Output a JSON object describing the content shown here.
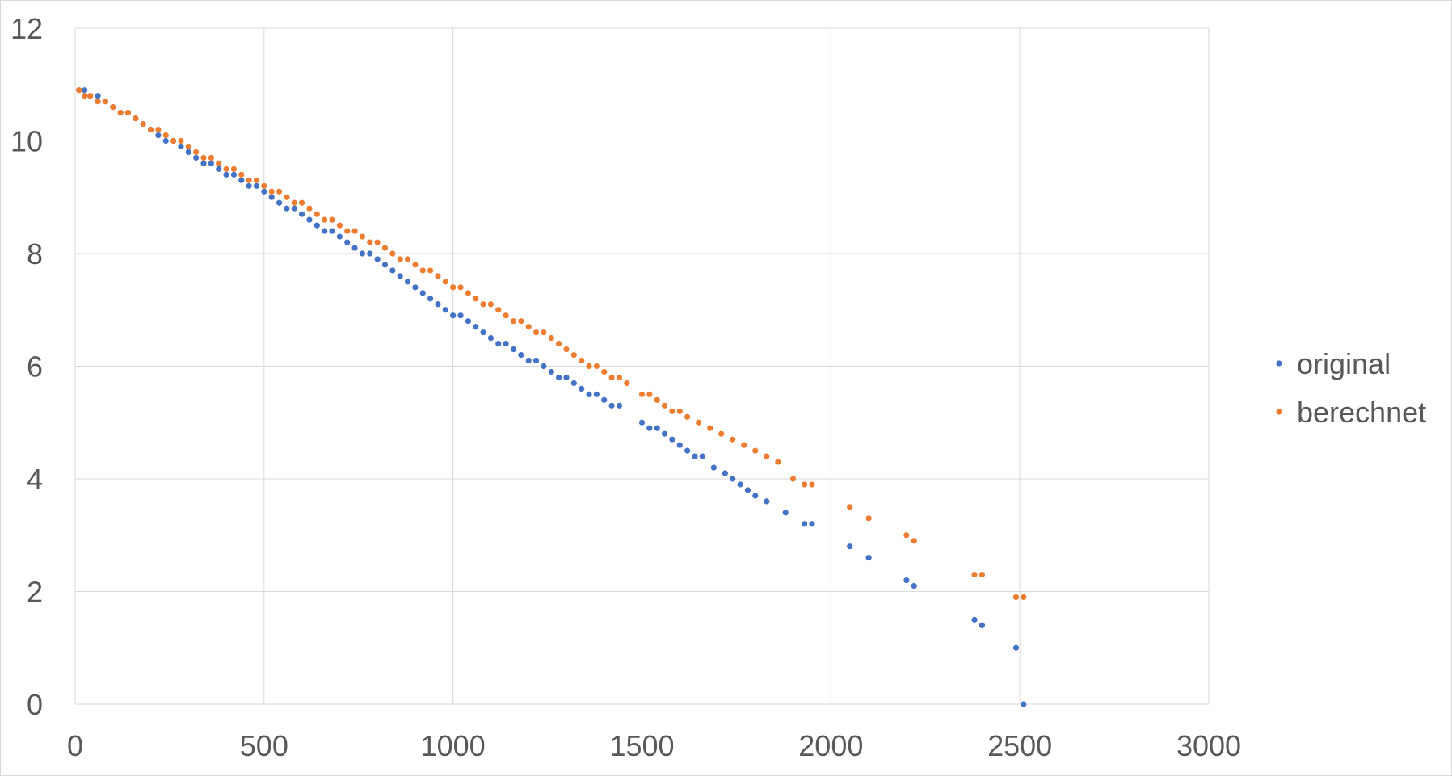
{
  "chart_data": {
    "type": "scatter",
    "title": "",
    "xlabel": "",
    "ylabel": "",
    "xlim": [
      0,
      3000
    ],
    "ylim": [
      0,
      12
    ],
    "x_ticks": [
      0,
      500,
      1000,
      1500,
      2000,
      2500,
      3000
    ],
    "y_ticks": [
      0,
      2,
      4,
      6,
      8,
      10,
      12
    ],
    "grid": true,
    "legend_position": "right",
    "colors": {
      "original": "#4472C4",
      "berechnet": "#ED7D31",
      "grid": "#d9d9d9",
      "text": "#595959"
    },
    "series": [
      {
        "name": "original",
        "points": [
          [
            10,
            10.9
          ],
          [
            25,
            10.9
          ],
          [
            40,
            10.8
          ],
          [
            60,
            10.8
          ],
          [
            80,
            10.7
          ],
          [
            100,
            10.6
          ],
          [
            120,
            10.5
          ],
          [
            140,
            10.5
          ],
          [
            160,
            10.4
          ],
          [
            180,
            10.3
          ],
          [
            200,
            10.2
          ],
          [
            220,
            10.1
          ],
          [
            240,
            10.0
          ],
          [
            260,
            10.0
          ],
          [
            280,
            9.9
          ],
          [
            300,
            9.8
          ],
          [
            320,
            9.7
          ],
          [
            340,
            9.6
          ],
          [
            360,
            9.6
          ],
          [
            380,
            9.5
          ],
          [
            400,
            9.4
          ],
          [
            420,
            9.4
          ],
          [
            440,
            9.3
          ],
          [
            460,
            9.2
          ],
          [
            480,
            9.2
          ],
          [
            500,
            9.1
          ],
          [
            520,
            9.0
          ],
          [
            540,
            8.9
          ],
          [
            560,
            8.8
          ],
          [
            580,
            8.8
          ],
          [
            600,
            8.7
          ],
          [
            620,
            8.6
          ],
          [
            640,
            8.5
          ],
          [
            660,
            8.4
          ],
          [
            680,
            8.4
          ],
          [
            700,
            8.3
          ],
          [
            720,
            8.2
          ],
          [
            740,
            8.1
          ],
          [
            760,
            8.0
          ],
          [
            780,
            8.0
          ],
          [
            800,
            7.9
          ],
          [
            820,
            7.8
          ],
          [
            840,
            7.7
          ],
          [
            860,
            7.6
          ],
          [
            880,
            7.5
          ],
          [
            900,
            7.4
          ],
          [
            920,
            7.3
          ],
          [
            940,
            7.2
          ],
          [
            960,
            7.1
          ],
          [
            980,
            7.0
          ],
          [
            1000,
            6.9
          ],
          [
            1020,
            6.9
          ],
          [
            1040,
            6.8
          ],
          [
            1060,
            6.7
          ],
          [
            1080,
            6.6
          ],
          [
            1100,
            6.5
          ],
          [
            1120,
            6.4
          ],
          [
            1140,
            6.4
          ],
          [
            1160,
            6.3
          ],
          [
            1180,
            6.2
          ],
          [
            1200,
            6.1
          ],
          [
            1220,
            6.1
          ],
          [
            1240,
            6.0
          ],
          [
            1260,
            5.9
          ],
          [
            1280,
            5.8
          ],
          [
            1300,
            5.8
          ],
          [
            1320,
            5.7
          ],
          [
            1340,
            5.6
          ],
          [
            1360,
            5.5
          ],
          [
            1380,
            5.5
          ],
          [
            1400,
            5.4
          ],
          [
            1420,
            5.3
          ],
          [
            1440,
            5.3
          ],
          [
            1500,
            5.0
          ],
          [
            1520,
            4.9
          ],
          [
            1540,
            4.9
          ],
          [
            1560,
            4.8
          ],
          [
            1580,
            4.7
          ],
          [
            1600,
            4.6
          ],
          [
            1620,
            4.5
          ],
          [
            1640,
            4.4
          ],
          [
            1660,
            4.4
          ],
          [
            1690,
            4.2
          ],
          [
            1720,
            4.1
          ],
          [
            1740,
            4.0
          ],
          [
            1760,
            3.9
          ],
          [
            1780,
            3.8
          ],
          [
            1800,
            3.7
          ],
          [
            1830,
            3.6
          ],
          [
            1880,
            3.4
          ],
          [
            1930,
            3.2
          ],
          [
            1950,
            3.2
          ],
          [
            2050,
            2.8
          ],
          [
            2100,
            2.6
          ],
          [
            2200,
            2.2
          ],
          [
            2220,
            2.1
          ],
          [
            2380,
            1.5
          ],
          [
            2400,
            1.4
          ],
          [
            2490,
            1.0
          ],
          [
            2510,
            0.0
          ]
        ]
      },
      {
        "name": "berechnet",
        "points": [
          [
            10,
            10.9
          ],
          [
            25,
            10.8
          ],
          [
            40,
            10.8
          ],
          [
            60,
            10.7
          ],
          [
            80,
            10.7
          ],
          [
            100,
            10.6
          ],
          [
            120,
            10.5
          ],
          [
            140,
            10.5
          ],
          [
            160,
            10.4
          ],
          [
            180,
            10.3
          ],
          [
            200,
            10.2
          ],
          [
            220,
            10.2
          ],
          [
            240,
            10.1
          ],
          [
            260,
            10.0
          ],
          [
            280,
            10.0
          ],
          [
            300,
            9.9
          ],
          [
            320,
            9.8
          ],
          [
            340,
            9.7
          ],
          [
            360,
            9.7
          ],
          [
            380,
            9.6
          ],
          [
            400,
            9.5
          ],
          [
            420,
            9.5
          ],
          [
            440,
            9.4
          ],
          [
            460,
            9.3
          ],
          [
            480,
            9.3
          ],
          [
            500,
            9.2
          ],
          [
            520,
            9.1
          ],
          [
            540,
            9.1
          ],
          [
            560,
            9.0
          ],
          [
            580,
            8.9
          ],
          [
            600,
            8.9
          ],
          [
            620,
            8.8
          ],
          [
            640,
            8.7
          ],
          [
            660,
            8.6
          ],
          [
            680,
            8.6
          ],
          [
            700,
            8.5
          ],
          [
            720,
            8.4
          ],
          [
            740,
            8.4
          ],
          [
            760,
            8.3
          ],
          [
            780,
            8.2
          ],
          [
            800,
            8.2
          ],
          [
            820,
            8.1
          ],
          [
            840,
            8.0
          ],
          [
            860,
            7.9
          ],
          [
            880,
            7.9
          ],
          [
            900,
            7.8
          ],
          [
            920,
            7.7
          ],
          [
            940,
            7.7
          ],
          [
            960,
            7.6
          ],
          [
            980,
            7.5
          ],
          [
            1000,
            7.4
          ],
          [
            1020,
            7.4
          ],
          [
            1040,
            7.3
          ],
          [
            1060,
            7.2
          ],
          [
            1080,
            7.1
          ],
          [
            1100,
            7.1
          ],
          [
            1120,
            7.0
          ],
          [
            1140,
            6.9
          ],
          [
            1160,
            6.8
          ],
          [
            1180,
            6.8
          ],
          [
            1200,
            6.7
          ],
          [
            1220,
            6.6
          ],
          [
            1240,
            6.6
          ],
          [
            1260,
            6.5
          ],
          [
            1280,
            6.4
          ],
          [
            1300,
            6.3
          ],
          [
            1320,
            6.2
          ],
          [
            1340,
            6.1
          ],
          [
            1360,
            6.0
          ],
          [
            1380,
            6.0
          ],
          [
            1400,
            5.9
          ],
          [
            1420,
            5.8
          ],
          [
            1440,
            5.8
          ],
          [
            1460,
            5.7
          ],
          [
            1500,
            5.5
          ],
          [
            1520,
            5.5
          ],
          [
            1540,
            5.4
          ],
          [
            1560,
            5.3
          ],
          [
            1580,
            5.2
          ],
          [
            1600,
            5.2
          ],
          [
            1620,
            5.1
          ],
          [
            1650,
            5.0
          ],
          [
            1680,
            4.9
          ],
          [
            1710,
            4.8
          ],
          [
            1740,
            4.7
          ],
          [
            1770,
            4.6
          ],
          [
            1800,
            4.5
          ],
          [
            1830,
            4.4
          ],
          [
            1860,
            4.3
          ],
          [
            1900,
            4.0
          ],
          [
            1930,
            3.9
          ],
          [
            1950,
            3.9
          ],
          [
            2050,
            3.5
          ],
          [
            2100,
            3.3
          ],
          [
            2200,
            3.0
          ],
          [
            2220,
            2.9
          ],
          [
            2380,
            2.3
          ],
          [
            2400,
            2.3
          ],
          [
            2490,
            1.9
          ],
          [
            2510,
            1.9
          ]
        ]
      }
    ]
  }
}
